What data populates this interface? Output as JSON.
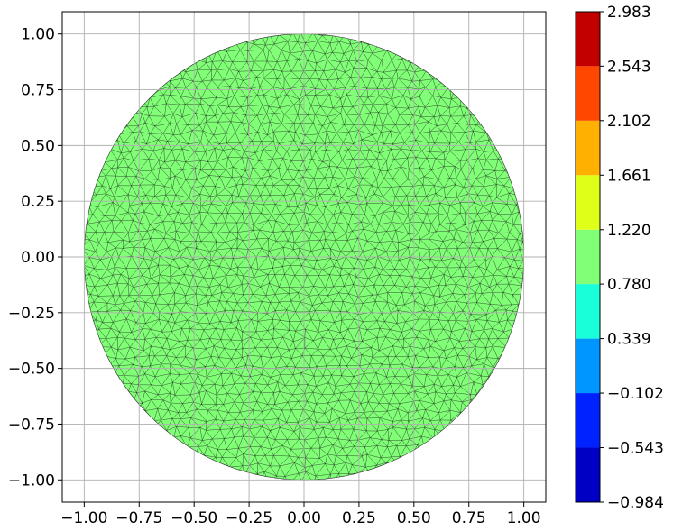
{
  "chart_data": {
    "type": "heatmap",
    "title": "",
    "xlabel": "",
    "ylabel": "",
    "xlim": [
      -1.1,
      1.1
    ],
    "ylim": [
      -1.1,
      1.1
    ],
    "grid": true,
    "x_ticks": [
      {
        "value": -1.0,
        "label": "−1.00"
      },
      {
        "value": -0.75,
        "label": "−0.75"
      },
      {
        "value": -0.5,
        "label": "−0.50"
      },
      {
        "value": -0.25,
        "label": "−0.25"
      },
      {
        "value": 0.0,
        "label": "0.00"
      },
      {
        "value": 0.25,
        "label": "0.25"
      },
      {
        "value": 0.5,
        "label": "0.50"
      },
      {
        "value": 0.75,
        "label": "0.75"
      },
      {
        "value": 1.0,
        "label": "1.00"
      }
    ],
    "y_ticks": [
      {
        "value": 1.0,
        "label": "1.00"
      },
      {
        "value": 0.75,
        "label": "0.75"
      },
      {
        "value": 0.5,
        "label": "0.50"
      },
      {
        "value": 0.25,
        "label": "0.25"
      },
      {
        "value": 0.0,
        "label": "0.00"
      },
      {
        "value": -0.25,
        "label": "−0.25"
      },
      {
        "value": -0.5,
        "label": "−0.50"
      },
      {
        "value": -0.75,
        "label": "−0.75"
      },
      {
        "value": -1.0,
        "label": "−1.00"
      }
    ],
    "domain": {
      "shape": "disk",
      "center": [
        0,
        0
      ],
      "radius": 1.0
    },
    "field_value": 1.0,
    "fill_color": "#80ff77",
    "mesh_color": "#1a1a1a",
    "colorbar": {
      "levels": [
        -0.984,
        -0.543,
        -0.102,
        0.339,
        0.78,
        1.22,
        1.661,
        2.102,
        2.543,
        2.983
      ],
      "labels": [
        "−0.984",
        "−0.543",
        "−0.102",
        "0.339",
        "0.780",
        "1.220",
        "1.661",
        "2.102",
        "2.543",
        "2.983"
      ],
      "colors": [
        "#0000c4",
        "#0022ff",
        "#0096ff",
        "#18ffd9",
        "#80ff77",
        "#dfff18",
        "#ffb000",
        "#ff4700",
        "#c20000"
      ]
    }
  }
}
